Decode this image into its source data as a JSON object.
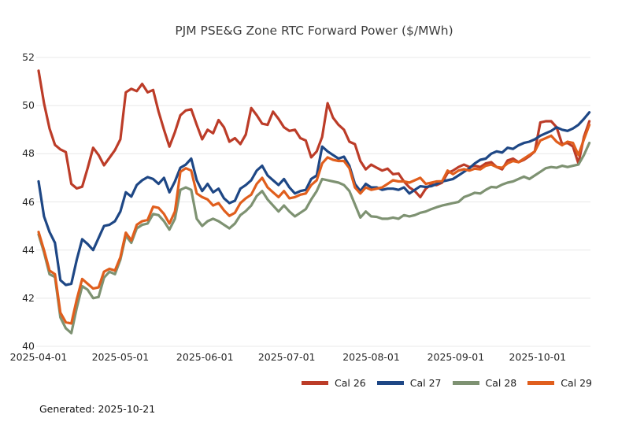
{
  "title": "PJM PSE&G Zone RTC Forward Power ($/MWh)",
  "footer": {
    "generated": "Generated: 2025-10-21"
  },
  "chart_data": {
    "type": "line",
    "title": "PJM PSE&G Zone RTC Forward Power ($/MWh)",
    "xlabel": "",
    "ylabel": "",
    "ylim": [
      40,
      52
    ],
    "y_ticks": [
      40,
      42,
      44,
      46,
      48,
      50,
      52
    ],
    "x_tick_labels": [
      "2025-04-01",
      "2025-05-01",
      "2025-06-01",
      "2025-07-01",
      "2025-08-01",
      "2025-09-01",
      "2025-10-01"
    ],
    "x_tick_days": [
      0,
      30,
      61,
      91,
      122,
      153,
      183
    ],
    "x_unit": "days since 2025-04-01",
    "xlim_days": [
      0,
      202
    ],
    "grid": "horizontal",
    "grid_color": "#e8e8e8",
    "legend_position": "bottom-right",
    "days": [
      0,
      2,
      4,
      6,
      8,
      10,
      12,
      14,
      16,
      18,
      20,
      22,
      24,
      26,
      28,
      30,
      32,
      34,
      36,
      38,
      40,
      42,
      44,
      46,
      48,
      50,
      52,
      54,
      56,
      58,
      60,
      62,
      64,
      66,
      68,
      70,
      72,
      74,
      76,
      78,
      80,
      82,
      84,
      86,
      88,
      90,
      92,
      94,
      96,
      98,
      100,
      102,
      104,
      106,
      108,
      110,
      112,
      114,
      116,
      118,
      120,
      122,
      124,
      126,
      128,
      130,
      132,
      134,
      136,
      138,
      140,
      142,
      144,
      146,
      148,
      150,
      152,
      154,
      156,
      158,
      160,
      162,
      164,
      166,
      168,
      170,
      172,
      174,
      176,
      178,
      180,
      182,
      184,
      186,
      188,
      190,
      192,
      194,
      196,
      198,
      200,
      202
    ],
    "series": [
      {
        "name": "Cal 26",
        "color": "#bc3c28",
        "values": [
          51.45,
          50.1,
          49.05,
          48.37,
          48.18,
          48.07,
          46.75,
          46.56,
          46.63,
          47.4,
          48.25,
          47.95,
          47.52,
          47.83,
          48.15,
          48.6,
          50.55,
          50.7,
          50.6,
          50.9,
          50.55,
          50.65,
          49.75,
          49.0,
          48.3,
          48.9,
          49.6,
          49.8,
          49.85,
          49.2,
          48.6,
          49.0,
          48.85,
          49.4,
          49.1,
          48.5,
          48.65,
          48.4,
          48.8,
          49.9,
          49.6,
          49.25,
          49.2,
          49.75,
          49.45,
          49.1,
          48.95,
          49.0,
          48.65,
          48.55,
          47.85,
          48.1,
          48.7,
          50.1,
          49.5,
          49.2,
          49.0,
          48.5,
          48.4,
          47.7,
          47.35,
          47.55,
          47.42,
          47.3,
          47.38,
          47.15,
          47.18,
          46.85,
          46.6,
          46.45,
          46.2,
          46.55,
          46.72,
          46.7,
          46.8,
          47.2,
          47.3,
          47.45,
          47.55,
          47.45,
          47.5,
          47.45,
          47.6,
          47.65,
          47.45,
          47.35,
          47.72,
          47.8,
          47.65,
          47.75,
          47.9,
          48.1,
          49.3,
          49.35,
          49.35,
          49.1,
          48.4,
          48.45,
          48.3,
          47.6,
          48.7,
          49.35
        ]
      },
      {
        "name": "Cal 27",
        "color": "#1e4785",
        "values": [
          46.85,
          45.4,
          44.75,
          44.3,
          42.75,
          42.55,
          42.6,
          43.6,
          44.45,
          44.25,
          44.0,
          44.5,
          45.0,
          45.05,
          45.2,
          45.6,
          46.4,
          46.22,
          46.7,
          46.9,
          47.03,
          46.95,
          46.75,
          47.0,
          46.4,
          46.85,
          47.42,
          47.55,
          47.8,
          46.9,
          46.45,
          46.75,
          46.4,
          46.55,
          46.15,
          45.95,
          46.05,
          46.55,
          46.7,
          46.9,
          47.3,
          47.5,
          47.1,
          46.9,
          46.7,
          46.95,
          46.6,
          46.35,
          46.45,
          46.5,
          46.95,
          47.1,
          48.3,
          48.1,
          47.95,
          47.8,
          47.88,
          47.5,
          46.75,
          46.45,
          46.75,
          46.6,
          46.6,
          46.5,
          46.55,
          46.55,
          46.5,
          46.6,
          46.35,
          46.5,
          46.65,
          46.62,
          46.65,
          46.75,
          46.85,
          46.9,
          46.95,
          47.1,
          47.25,
          47.4,
          47.6,
          47.75,
          47.8,
          48.0,
          48.1,
          48.05,
          48.25,
          48.2,
          48.35,
          48.45,
          48.5,
          48.6,
          48.75,
          48.85,
          48.95,
          49.1,
          49.0,
          48.95,
          49.05,
          49.2,
          49.45,
          49.72
        ]
      },
      {
        "name": "Cal 28",
        "color": "#7e9272",
        "values": [
          44.65,
          43.9,
          43.0,
          42.88,
          41.2,
          40.75,
          40.55,
          41.6,
          42.5,
          42.35,
          42.0,
          42.05,
          42.85,
          43.1,
          43.0,
          43.6,
          44.6,
          44.3,
          44.9,
          45.05,
          45.1,
          45.5,
          45.45,
          45.2,
          44.85,
          45.3,
          46.5,
          46.6,
          46.5,
          45.3,
          45.0,
          45.2,
          45.3,
          45.2,
          45.05,
          44.9,
          45.1,
          45.45,
          45.62,
          45.85,
          46.25,
          46.45,
          46.1,
          45.85,
          45.6,
          45.85,
          45.6,
          45.4,
          45.55,
          45.7,
          46.1,
          46.45,
          46.95,
          46.9,
          46.85,
          46.8,
          46.7,
          46.45,
          45.9,
          45.35,
          45.6,
          45.4,
          45.38,
          45.3,
          45.3,
          45.35,
          45.3,
          45.45,
          45.4,
          45.45,
          45.55,
          45.6,
          45.7,
          45.78,
          45.85,
          45.9,
          45.95,
          46.0,
          46.2,
          46.28,
          46.38,
          46.35,
          46.5,
          46.62,
          46.6,
          46.72,
          46.8,
          46.85,
          46.95,
          47.05,
          46.95,
          47.1,
          47.25,
          47.4,
          47.45,
          47.42,
          47.5,
          47.45,
          47.5,
          47.55,
          47.95,
          48.45
        ]
      },
      {
        "name": "Cal 29",
        "color": "#e05e1d",
        "values": [
          44.75,
          44.0,
          43.15,
          43.0,
          41.4,
          41.0,
          40.95,
          41.95,
          42.8,
          42.6,
          42.4,
          42.45,
          43.1,
          43.22,
          43.15,
          43.7,
          44.72,
          44.4,
          45.05,
          45.2,
          45.25,
          45.8,
          45.75,
          45.5,
          45.1,
          45.6,
          47.25,
          47.4,
          47.3,
          46.35,
          46.2,
          46.1,
          45.85,
          45.95,
          45.65,
          45.42,
          45.55,
          45.95,
          46.15,
          46.3,
          46.75,
          47.0,
          46.6,
          46.4,
          46.2,
          46.45,
          46.15,
          46.2,
          46.3,
          46.35,
          46.7,
          46.9,
          47.6,
          47.85,
          47.75,
          47.7,
          47.7,
          47.4,
          46.6,
          46.35,
          46.6,
          46.5,
          46.55,
          46.6,
          46.75,
          46.9,
          46.85,
          46.85,
          46.8,
          46.9,
          47.0,
          46.75,
          46.8,
          46.85,
          46.86,
          47.3,
          47.15,
          47.3,
          47.36,
          47.3,
          47.38,
          47.35,
          47.5,
          47.55,
          47.45,
          47.42,
          47.6,
          47.7,
          47.65,
          47.8,
          47.95,
          48.1,
          48.55,
          48.65,
          48.75,
          48.5,
          48.35,
          48.5,
          48.45,
          47.95,
          48.6,
          49.2
        ]
      }
    ]
  }
}
